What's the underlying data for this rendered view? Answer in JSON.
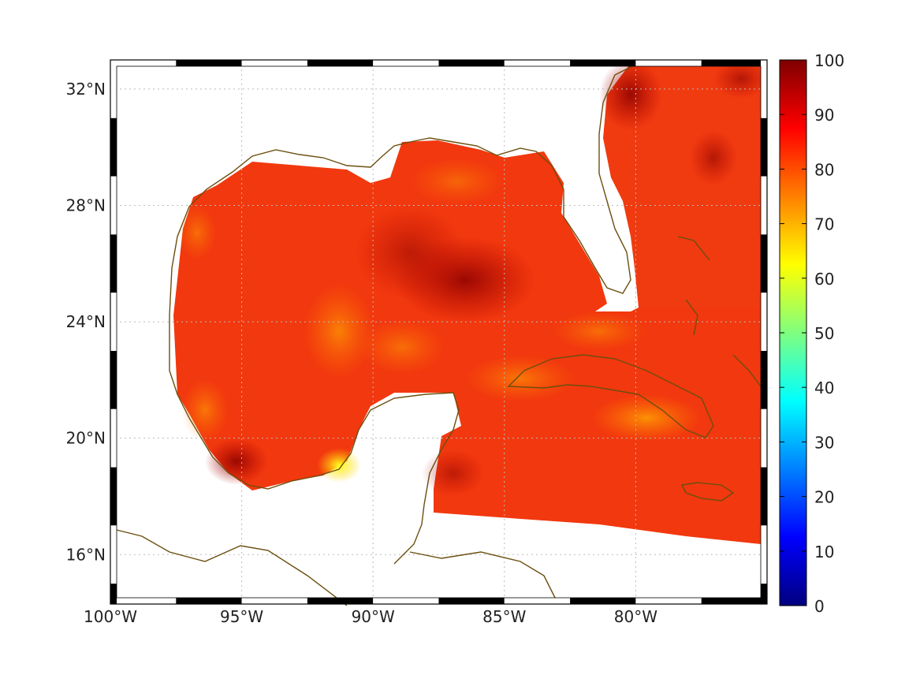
{
  "map": {
    "lat_labels": [
      "32°N",
      "28°N",
      "24°N",
      "20°N",
      "16°N"
    ],
    "lon_labels": [
      "100°W",
      "95°W",
      "90°W",
      "85°W",
      "80°W"
    ],
    "lat_values": [
      32,
      28,
      24,
      20,
      16
    ],
    "lon_values": [
      -100,
      -95,
      -90,
      -85,
      -80
    ],
    "lat_range": [
      14.3,
      33
    ],
    "lon_range": [
      -100,
      -75
    ],
    "coastline_color": "#6b4f0f",
    "grid": "dotted"
  },
  "colorbar": {
    "ticks": [
      "100",
      "90",
      "80",
      "70",
      "60",
      "50",
      "40",
      "30",
      "20",
      "10",
      "0"
    ],
    "range": [
      0,
      100
    ],
    "colormap": "jet",
    "stops": [
      "#00007f",
      "#0000ff",
      "#0080ff",
      "#00ffff",
      "#80ff80",
      "#ffff00",
      "#ff8000",
      "#ff0000",
      "#7f0000"
    ]
  }
}
